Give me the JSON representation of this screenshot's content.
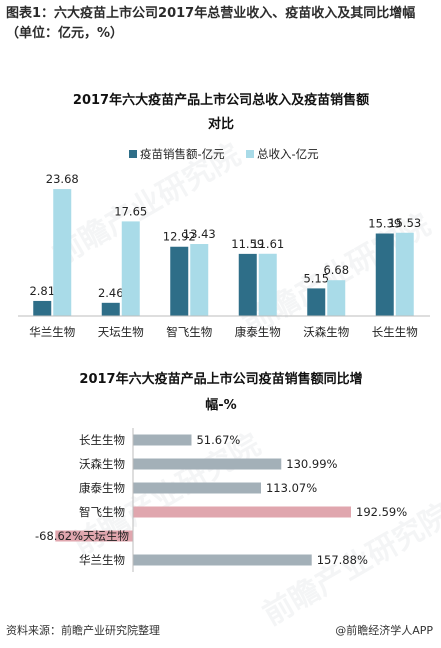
{
  "figure_title": "图表1：六大疫苗上市公司2017年总营业收入、疫苗收入及其同比增幅（单位：亿元，%）",
  "footer": {
    "source": "资料来源：前瞻产业研究院整理",
    "app": "@前瞻经济学人APP"
  },
  "watermark": {
    "text": "前瞻产业研究院"
  },
  "colors": {
    "vaccine_sales": "#2e6e88",
    "total_income": "#a9dbe8",
    "growth_bar": "#a3b0b8",
    "growth_bar_highlight": "#e0a6ae"
  },
  "chart_data": [
    {
      "type": "bar",
      "title_lines": [
        "2017年六大疫苗产品上市公司总收入及疫苗销售额",
        "对比"
      ],
      "categories": [
        "华兰生物",
        "天坛生物",
        "智飞生物",
        "康泰生物",
        "沃森生物",
        "长生生物"
      ],
      "series": [
        {
          "name": "疫苗销售额-亿元",
          "values": [
            2.81,
            2.46,
            12.92,
            11.59,
            5.15,
            15.39
          ],
          "labels": [
            "2.81",
            "2.46",
            "12.92",
            "11.59",
            "5.15",
            "15.39"
          ]
        },
        {
          "name": "总收入-亿元",
          "values": [
            23.68,
            17.65,
            13.43,
            11.61,
            6.68,
            15.53
          ],
          "labels": [
            "23.68",
            "17.65",
            "13.43",
            "11.61",
            "6.68",
            "15.53"
          ]
        }
      ],
      "ylim": [
        0,
        25
      ],
      "legend": "top",
      "grid": false
    },
    {
      "type": "bar",
      "orientation": "horizontal",
      "title_lines": [
        "2017年六大疫苗产品上市公司疫苗销售额同比增",
        "幅-%"
      ],
      "categories": [
        "长生生物",
        "沃森生物",
        "康泰生物",
        "智飞生物",
        "天坛生物",
        "华兰生物"
      ],
      "values": [
        51.67,
        130.99,
        113.07,
        192.59,
        -68.62,
        157.88
      ],
      "labels": [
        "51.67%",
        "130.99%",
        "113.07%",
        "192.59%",
        "-68.62%",
        "157.88%"
      ],
      "highlight": [
        "智飞生物",
        "天坛生物"
      ],
      "xlim": [
        -70,
        200
      ],
      "grid": false
    }
  ]
}
